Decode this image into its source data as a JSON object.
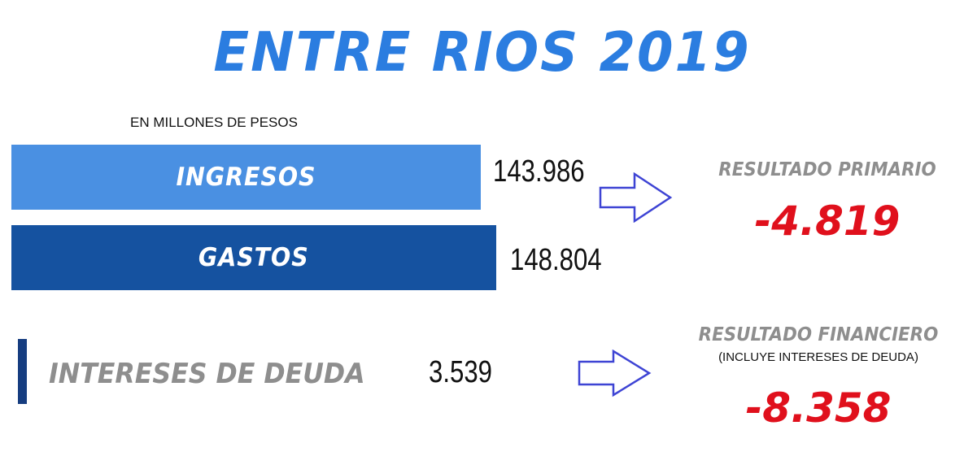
{
  "title": "ENTRE RIOS 2019",
  "units_note": "EN MILLONES DE PESOS",
  "colors": {
    "title": "#2b7de0",
    "ingresos": "#4a90e2",
    "gastos": "#1552a0",
    "deuda_marker": "#163d80",
    "negative": "#e0101c",
    "label_gray": "#8e8e8e",
    "arrow": "#3e44d4"
  },
  "chart_data": {
    "type": "bar",
    "orientation": "horizontal",
    "categories": [
      "INGRESOS",
      "GASTOS"
    ],
    "values": [
      143986,
      148804
    ],
    "value_labels": [
      "143.986",
      "148.804"
    ],
    "title": "ENTRE RIOS 2019",
    "subtitle": "EN MILLONES DE PESOS",
    "xlim": [
      0,
      148804
    ],
    "grid": false
  },
  "intereses": {
    "label": "INTERESES DE DEUDA",
    "value_label": "3.539",
    "value": 3539
  },
  "resultado_primario": {
    "label": "RESULTADO PRIMARIO",
    "value_label": "-4.819",
    "value": -4819
  },
  "resultado_financiero": {
    "label": "RESULTADO FINANCIERO",
    "note": "(INCLUYE INTERESES DE DEUDA)",
    "value_label": "-8.358",
    "value": -8358
  },
  "icons": [
    "arrow-right-outline-icon",
    "arrow-right-outline-icon"
  ]
}
